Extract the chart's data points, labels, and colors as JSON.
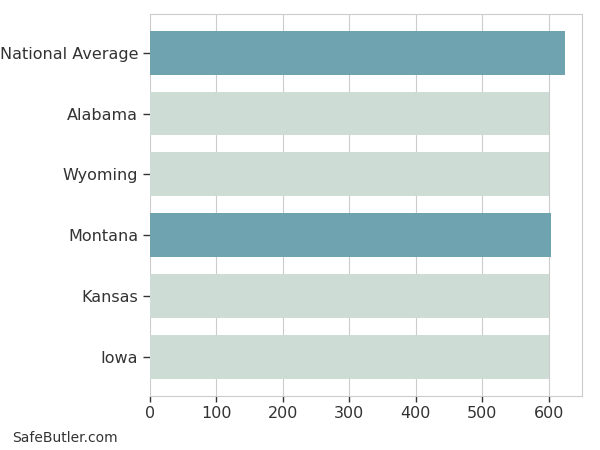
{
  "categories": [
    "National Average",
    "Alabama",
    "Wyoming",
    "Montana",
    "Kansas",
    "Iowa"
  ],
  "values": [
    625,
    600,
    600,
    603,
    600,
    600
  ],
  "bar_colors": [
    "#6fa3b0",
    "#cdddd5",
    "#cdddd5",
    "#6fa3b0",
    "#cdddd5",
    "#cdddd5"
  ],
  "xlim": [
    0,
    650
  ],
  "xticks": [
    0,
    100,
    200,
    300,
    400,
    500,
    600
  ],
  "background_color": "#ffffff",
  "grid_color": "#cccccc",
  "text_color": "#333333",
  "watermark": "SafeButler.com",
  "bar_height": 0.72,
  "font_size": 11.5,
  "watermark_font_size": 10
}
